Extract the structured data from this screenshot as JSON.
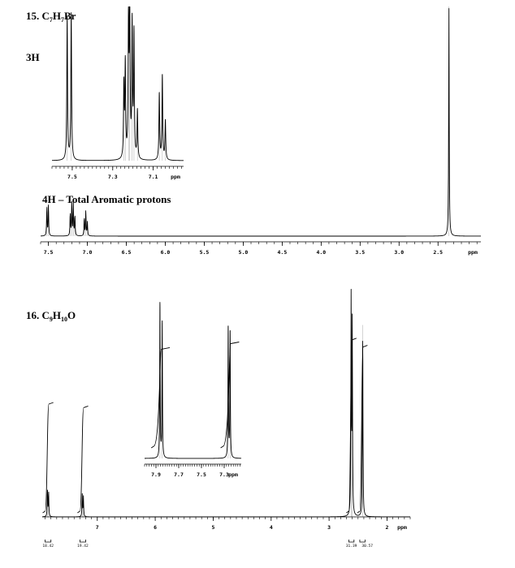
{
  "chart_data": [
    {
      "type": "line",
      "id": "spectrum-15",
      "title": "15. C7H7Br",
      "title_parts": {
        "prefix": "15. C",
        "s1": "7",
        "m1": "H",
        "s2": "7",
        "m2": "Br"
      },
      "annotations": [
        "3H",
        "4H – Total Aromatic protons"
      ],
      "xlabel": "ppm",
      "xlim": [
        7.6,
        1.95
      ],
      "xticks": [
        "7.5",
        "7.0",
        "6.5",
        "6.0",
        "5.5",
        "5.0",
        "4.5",
        "4.0",
        "3.5",
        "3.0",
        "2.5"
      ],
      "peaks": [
        {
          "ppm": 7.52,
          "h": 0.13
        },
        {
          "ppm": 7.5,
          "h": 0.14
        },
        {
          "ppm": 7.22,
          "h": 0.1
        },
        {
          "ppm": 7.2,
          "h": 0.15
        },
        {
          "ppm": 7.18,
          "h": 0.14
        },
        {
          "ppm": 7.16,
          "h": 0.09
        },
        {
          "ppm": 7.04,
          "h": 0.08
        },
        {
          "ppm": 7.02,
          "h": 0.11
        },
        {
          "ppm": 7.0,
          "h": 0.06
        },
        {
          "ppm": 2.36,
          "h": 1.0
        }
      ],
      "inset": {
        "xlim": [
          7.6,
          6.95
        ],
        "xticks": [
          "7.5",
          "7.3",
          "7.1"
        ],
        "xlabel": "ppm",
        "peaks": [
          {
            "ppm": 7.525,
            "h": 0.95
          },
          {
            "ppm": 7.505,
            "h": 0.97
          },
          {
            "ppm": 7.245,
            "h": 0.48
          },
          {
            "ppm": 7.238,
            "h": 0.62
          },
          {
            "ppm": 7.222,
            "h": 0.93
          },
          {
            "ppm": 7.216,
            "h": 1.0
          },
          {
            "ppm": 7.204,
            "h": 0.88
          },
          {
            "ppm": 7.195,
            "h": 0.82
          },
          {
            "ppm": 7.178,
            "h": 0.32
          },
          {
            "ppm": 7.07,
            "h": 0.44
          },
          {
            "ppm": 7.055,
            "h": 0.56
          },
          {
            "ppm": 7.04,
            "h": 0.26
          }
        ]
      }
    },
    {
      "type": "line",
      "id": "spectrum-16",
      "title": "16. C9H10O",
      "title_parts": {
        "prefix": "16. C",
        "s1": "9",
        "m1": "H",
        "s2": "10",
        "m2": "O"
      },
      "xlabel": "ppm",
      "xlim": [
        7.95,
        1.6
      ],
      "xticks": [
        "7",
        "6",
        "5",
        "4",
        "3",
        "2"
      ],
      "peaks": [
        {
          "ppm": 7.86,
          "h": 0.12
        },
        {
          "ppm": 7.84,
          "h": 0.11
        },
        {
          "ppm": 7.26,
          "h": 0.1
        },
        {
          "ppm": 7.24,
          "h": 0.09
        },
        {
          "ppm": 2.62,
          "h": 1.0
        },
        {
          "ppm": 2.6,
          "h": 0.85
        },
        {
          "ppm": 2.42,
          "h": 0.86
        }
      ],
      "integrals": [
        {
          "from": 7.9,
          "to": 7.8,
          "rise": 0.6,
          "label": "18.42"
        },
        {
          "from": 7.3,
          "to": 7.2,
          "rise": 0.58,
          "label": "19.42"
        },
        {
          "from": 2.66,
          "to": 2.57,
          "rise": 0.96,
          "label": "31.39"
        },
        {
          "from": 2.47,
          "to": 2.38,
          "rise": 0.92,
          "label": "30.57"
        }
      ],
      "inset": {
        "xlim": [
          8.0,
          7.15
        ],
        "xticks": [
          "7.9",
          "7.7",
          "7.5",
          "7.3"
        ],
        "xlabel": "ppm",
        "peaks": [
          {
            "ppm": 7.865,
            "h": 1.0
          },
          {
            "ppm": 7.845,
            "h": 0.88
          },
          {
            "ppm": 7.265,
            "h": 0.85
          },
          {
            "ppm": 7.248,
            "h": 0.82
          }
        ],
        "integrals": [
          {
            "from": 7.92,
            "to": 7.8,
            "rise": 0.52
          },
          {
            "from": 7.31,
            "to": 7.19,
            "rise": 0.55
          }
        ]
      }
    }
  ]
}
